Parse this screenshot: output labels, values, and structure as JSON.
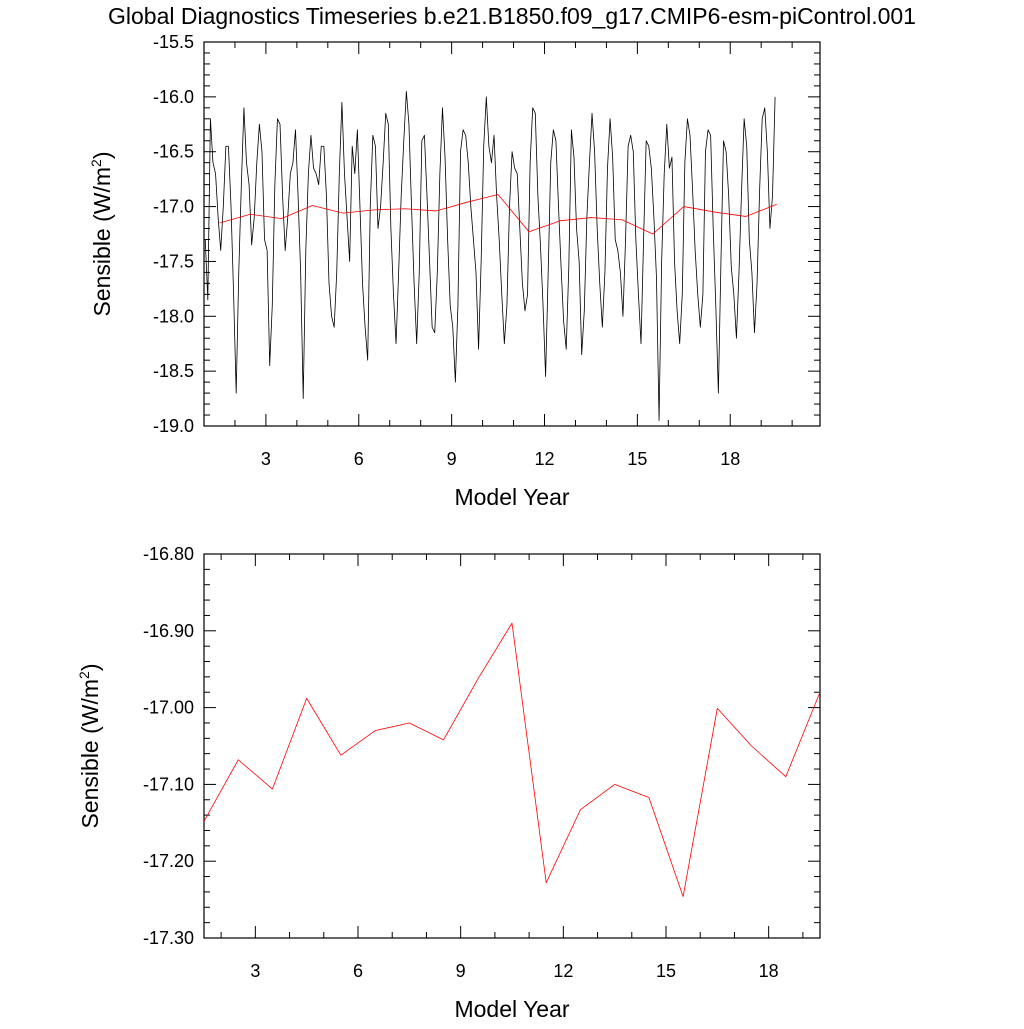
{
  "title": "Global Diagnostics Timeseries b.e21.B1850.f09_g17.CMIP6-esm-piControl.001",
  "colors": {
    "monthly": "#000000",
    "annual": "#ff0000",
    "axes": "#000000",
    "background": "#ffffff"
  },
  "chart_data": [
    {
      "type": "line",
      "xlabel": "Model Year",
      "ylabel": "Sensible (W/m",
      "ylabel_sup": "2",
      "ylabel_close": ")",
      "xlim": [
        1.0,
        20.9
      ],
      "ylim": [
        -19.0,
        -15.5
      ],
      "xticks": [
        3,
        6,
        9,
        12,
        15,
        18
      ],
      "yticks": [
        -19.0,
        -18.5,
        -18.0,
        -17.5,
        -17.0,
        -16.5,
        -16.0,
        -15.5
      ],
      "ytick_labels": [
        "-19.0",
        "-18.5",
        "-18.0",
        "-17.5",
        "-17.0",
        "-16.5",
        "-16.0",
        "-15.5"
      ],
      "grid": false,
      "series": [
        {
          "color": "#000000",
          "x_start": 1.04,
          "x_step": 0.0833,
          "values": [
            -17.3,
            -17.85,
            -16.2,
            -16.6,
            -16.7,
            -17.1,
            -17.4,
            -17.0,
            -16.45,
            -16.45,
            -17.0,
            -17.8,
            -18.7,
            -17.6,
            -16.8,
            -16.1,
            -16.6,
            -16.8,
            -17.35,
            -17.1,
            -16.6,
            -16.25,
            -16.5,
            -17.3,
            -17.4,
            -18.45,
            -17.9,
            -16.8,
            -16.2,
            -16.25,
            -16.9,
            -17.4,
            -17.1,
            -16.7,
            -16.6,
            -16.3,
            -16.9,
            -17.6,
            -18.75,
            -17.4,
            -16.7,
            -16.35,
            -16.65,
            -16.7,
            -16.8,
            -16.45,
            -16.45,
            -16.9,
            -17.7,
            -18.0,
            -18.1,
            -17.6,
            -16.7,
            -16.05,
            -16.7,
            -17.1,
            -17.5,
            -16.45,
            -16.7,
            -16.3,
            -17.0,
            -17.7,
            -18.1,
            -18.4,
            -17.0,
            -16.35,
            -16.45,
            -17.2,
            -17.0,
            -16.6,
            -16.15,
            -16.25,
            -17.2,
            -17.8,
            -18.25,
            -17.6,
            -16.9,
            -16.4,
            -15.95,
            -16.25,
            -17.0,
            -17.7,
            -18.25,
            -17.6,
            -16.4,
            -16.35,
            -16.9,
            -17.5,
            -18.1,
            -18.15,
            -17.6,
            -16.7,
            -16.1,
            -16.55,
            -17.3,
            -17.9,
            -18.1,
            -18.6,
            -17.9,
            -16.5,
            -16.3,
            -16.35,
            -16.6,
            -17.0,
            -17.3,
            -17.6,
            -18.3,
            -17.5,
            -16.45,
            -16.0,
            -16.45,
            -16.6,
            -16.35,
            -16.9,
            -17.3,
            -17.8,
            -18.25,
            -17.9,
            -17.0,
            -16.5,
            -16.65,
            -16.7,
            -17.2,
            -17.7,
            -17.95,
            -17.8,
            -16.6,
            -16.1,
            -16.15,
            -16.9,
            -17.35,
            -17.9,
            -18.55,
            -17.6,
            -16.6,
            -16.3,
            -16.4,
            -17.0,
            -17.55,
            -18.05,
            -18.3,
            -17.55,
            -16.3,
            -16.55,
            -17.2,
            -17.5,
            -18.35,
            -17.95,
            -17.1,
            -16.6,
            -16.15,
            -16.5,
            -17.2,
            -17.7,
            -18.1,
            -17.6,
            -16.65,
            -16.2,
            -16.55,
            -17.3,
            -17.4,
            -17.6,
            -18.0,
            -17.3,
            -16.45,
            -16.35,
            -16.5,
            -17.3,
            -17.8,
            -18.25,
            -17.3,
            -16.4,
            -16.45,
            -16.65,
            -17.1,
            -17.65,
            -18.95,
            -17.5,
            -16.7,
            -16.25,
            -16.65,
            -16.55,
            -17.5,
            -17.95,
            -18.25,
            -17.8,
            -16.6,
            -16.2,
            -16.35,
            -16.85,
            -17.4,
            -17.8,
            -18.1,
            -17.8,
            -16.5,
            -16.3,
            -16.35,
            -17.2,
            -17.9,
            -18.7,
            -17.5,
            -16.4,
            -16.5,
            -16.9,
            -17.55,
            -17.8,
            -18.2,
            -17.6,
            -16.85,
            -16.2,
            -16.45,
            -17.3,
            -17.6,
            -18.15,
            -17.7,
            -16.85,
            -16.2,
            -16.1,
            -16.5,
            -17.2,
            -16.9,
            -16.0
          ]
        },
        {
          "color": "#ff0000",
          "x": [
            1.5,
            2.5,
            3.5,
            4.5,
            5.5,
            6.5,
            7.5,
            8.5,
            9.5,
            10.5,
            11.5,
            12.5,
            13.5,
            14.5,
            15.5,
            16.5,
            17.5,
            18.5,
            19.5
          ],
          "values": [
            -17.15,
            -17.07,
            -17.11,
            -16.99,
            -17.06,
            -17.03,
            -17.02,
            -17.04,
            -16.96,
            -16.89,
            -17.23,
            -17.13,
            -17.1,
            -17.12,
            -17.25,
            -17.0,
            -17.05,
            -17.09,
            -16.98
          ]
        }
      ]
    },
    {
      "type": "line",
      "xlabel": "Model Year",
      "ylabel": "Sensible (W/m",
      "ylabel_sup": "2",
      "ylabel_close": ")",
      "xlim": [
        1.5,
        19.5
      ],
      "ylim": [
        -17.3,
        -16.8
      ],
      "xticks": [
        3,
        6,
        9,
        12,
        15,
        18
      ],
      "yticks": [
        -17.3,
        -17.2,
        -17.1,
        -17.0,
        -16.9,
        -16.8
      ],
      "ytick_labels": [
        "-17.30",
        "-17.20",
        "-17.10",
        "-17.00",
        "-16.90",
        "-16.80"
      ],
      "grid": false,
      "series": [
        {
          "color": "#ff0000",
          "x": [
            1.5,
            2.5,
            3.5,
            4.5,
            5.5,
            6.5,
            7.5,
            8.5,
            9.5,
            10.5,
            11.5,
            12.5,
            13.5,
            14.5,
            15.5,
            16.5,
            17.5,
            18.5,
            19.5
          ],
          "values": [
            -17.148,
            -17.068,
            -17.106,
            -16.988,
            -17.062,
            -17.03,
            -17.02,
            -17.042,
            -16.963,
            -16.89,
            -17.228,
            -17.133,
            -17.1,
            -17.117,
            -17.246,
            -17.001,
            -17.05,
            -17.09,
            -16.98
          ]
        }
      ]
    }
  ]
}
